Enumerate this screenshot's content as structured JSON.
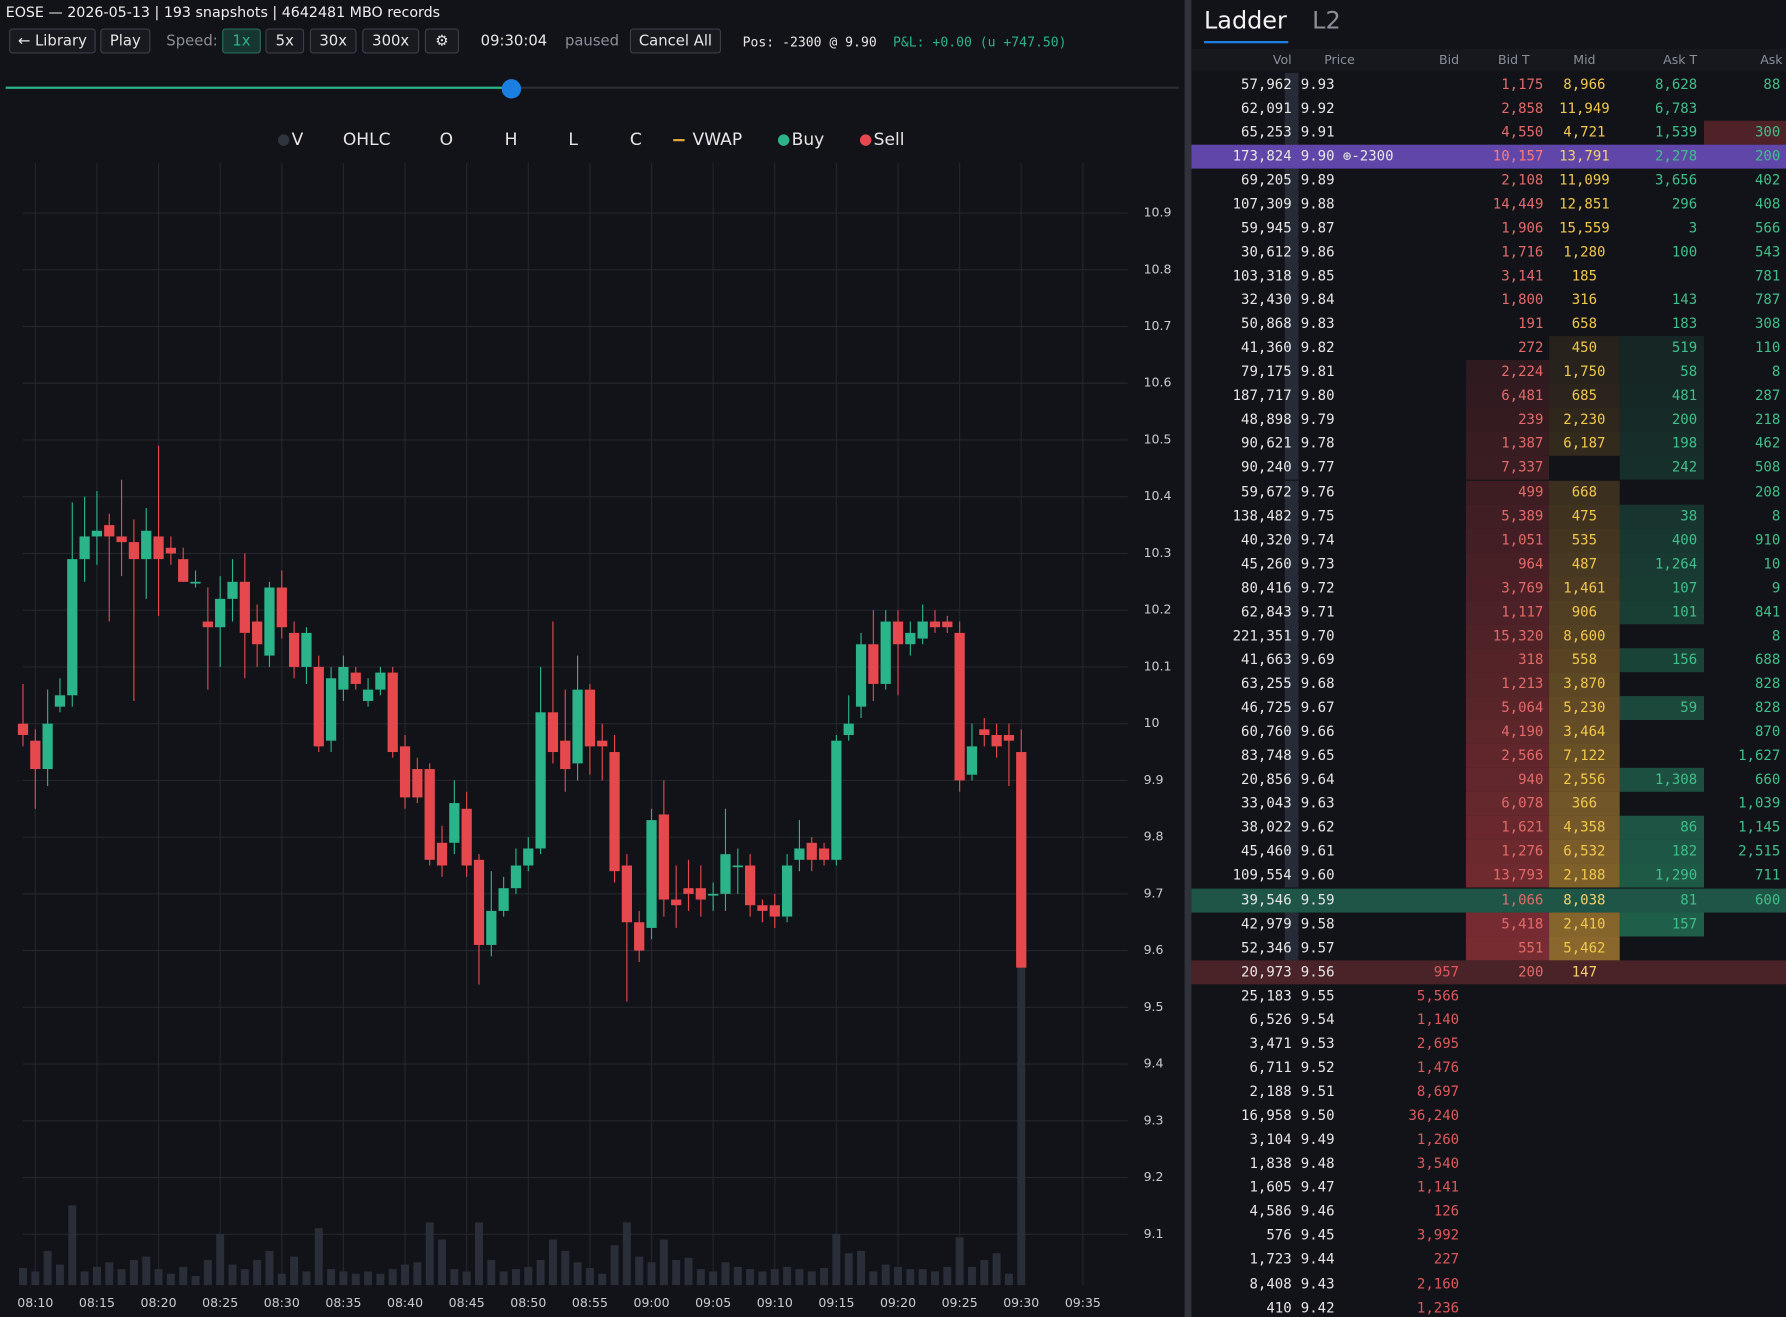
{
  "header": {
    "title": "EOSE — 2026-05-13 | 193 snapshots | 4642481 MBO records"
  },
  "toolbar": {
    "library": "← Library",
    "play": "Play",
    "speed_label": "Speed:",
    "speeds": [
      "1x",
      "5x",
      "30x",
      "300x"
    ],
    "settings": "⚙",
    "clock": "09:30:04",
    "status": "paused",
    "cancel": "Cancel All",
    "position": "Pos: -2300 @ 9.90",
    "pnl": "P&L: +0.00 (u +747.50)"
  },
  "chart_data": {
    "type": "candlestick",
    "legend": [
      {
        "name": "V",
        "marker": "dot",
        "color": "#30343e"
      },
      {
        "name": "OHLC"
      },
      {
        "name": "O"
      },
      {
        "name": "H"
      },
      {
        "name": "L"
      },
      {
        "name": "C"
      },
      {
        "name": "VWAP",
        "marker": "line",
        "color": "#e0a53a"
      },
      {
        "name": "Buy",
        "marker": "dot",
        "color": "#2bb38a"
      },
      {
        "name": "Sell",
        "marker": "dot",
        "color": "#e5484d"
      }
    ],
    "up_color": "#2bb38a",
    "down_color": "#e5484d",
    "volume_color": "#2a2e38",
    "x": [
      "08:09",
      "08:10",
      "08:11",
      "08:12",
      "08:13",
      "08:14",
      "08:15",
      "08:16",
      "08:17",
      "08:18",
      "08:19",
      "08:20",
      "08:21",
      "08:22",
      "08:23",
      "08:24",
      "08:25",
      "08:26",
      "08:27",
      "08:28",
      "08:29",
      "08:30",
      "08:31",
      "08:32",
      "08:33",
      "08:34",
      "08:35",
      "08:36",
      "08:37",
      "08:38",
      "08:39",
      "08:40",
      "08:41",
      "08:42",
      "08:43",
      "08:44",
      "08:45",
      "08:46",
      "08:47",
      "08:48",
      "08:49",
      "08:50",
      "08:51",
      "08:52",
      "08:53",
      "08:54",
      "08:55",
      "08:56",
      "08:57",
      "08:58",
      "08:59",
      "09:00",
      "09:01",
      "09:02",
      "09:03",
      "09:04",
      "09:05",
      "09:06",
      "09:07",
      "09:08",
      "09:09",
      "09:10",
      "09:11",
      "09:12",
      "09:13",
      "09:14",
      "09:15",
      "09:16",
      "09:17",
      "09:18",
      "09:19",
      "09:20",
      "09:21",
      "09:22",
      "09:23",
      "09:24",
      "09:25",
      "09:26",
      "09:27",
      "09:28",
      "09:29",
      "09:30"
    ],
    "open": [
      10.0,
      9.97,
      9.92,
      10.03,
      10.05,
      10.29,
      10.33,
      10.35,
      10.33,
      10.32,
      10.29,
      10.33,
      10.31,
      10.29,
      10.25,
      10.18,
      10.17,
      10.22,
      10.25,
      10.18,
      10.12,
      10.24,
      10.16,
      10.1,
      10.1,
      9.97,
      10.06,
      10.09,
      10.04,
      10.06,
      10.09,
      9.96,
      9.92,
      9.92,
      9.79,
      9.79,
      9.85,
      9.76,
      9.61,
      9.67,
      9.71,
      9.75,
      9.78,
      10.02,
      9.97,
      9.93,
      10.06,
      9.97,
      9.95,
      9.75,
      9.65,
      9.64,
      9.84,
      9.69,
      9.71,
      9.71,
      9.7,
      9.7,
      9.75,
      9.75,
      9.68,
      9.68,
      9.66,
      9.76,
      9.79,
      9.78,
      9.76,
      9.98,
      10.03,
      10.14,
      10.07,
      10.18,
      10.14,
      10.15,
      10.18,
      10.18,
      10.16,
      9.91,
      9.99,
      9.98,
      9.98,
      9.95
    ],
    "high": [
      10.07,
      9.99,
      10.06,
      10.08,
      10.39,
      10.4,
      10.41,
      10.37,
      10.43,
      10.36,
      10.38,
      10.49,
      10.33,
      10.31,
      10.27,
      10.24,
      10.26,
      10.29,
      10.3,
      10.21,
      10.25,
      10.27,
      10.18,
      10.17,
      10.12,
      10.1,
      10.12,
      10.1,
      10.08,
      10.1,
      10.1,
      9.98,
      9.94,
      9.93,
      9.82,
      9.9,
      9.88,
      9.77,
      9.74,
      9.73,
      9.78,
      9.8,
      10.1,
      10.18,
      10.06,
      10.12,
      10.07,
      10.0,
      9.98,
      9.77,
      9.67,
      9.85,
      9.9,
      9.75,
      9.76,
      9.75,
      9.72,
      9.85,
      9.78,
      9.77,
      9.69,
      9.7,
      9.77,
      9.83,
      9.8,
      9.79,
      9.98,
      10.05,
      10.16,
      10.2,
      10.2,
      10.2,
      10.18,
      10.21,
      10.2,
      10.19,
      10.18,
      10.0,
      10.01,
      10.0,
      10.0,
      9.99
    ],
    "low": [
      9.96,
      9.85,
      9.89,
      10.02,
      10.03,
      10.25,
      10.28,
      10.18,
      10.26,
      10.04,
      10.22,
      10.19,
      10.28,
      10.25,
      10.24,
      10.06,
      10.1,
      10.18,
      10.08,
      10.1,
      10.1,
      10.15,
      10.08,
      10.07,
      9.95,
      9.95,
      10.04,
      10.06,
      10.03,
      10.05,
      9.94,
      9.85,
      9.86,
      9.75,
      9.73,
      9.77,
      9.73,
      9.54,
      9.59,
      9.66,
      9.7,
      9.74,
      9.77,
      9.93,
      9.88,
      9.9,
      9.91,
      9.9,
      9.72,
      9.51,
      9.58,
      9.62,
      9.66,
      9.64,
      9.67,
      9.66,
      9.67,
      9.67,
      9.7,
      9.66,
      9.65,
      9.64,
      9.65,
      9.74,
      9.74,
      9.75,
      9.75,
      9.97,
      10.01,
      10.04,
      10.06,
      10.05,
      10.12,
      10.14,
      10.16,
      10.16,
      9.88,
      9.9,
      9.96,
      9.94,
      9.89,
      9.57
    ],
    "close": [
      9.98,
      9.92,
      10.0,
      10.05,
      10.29,
      10.33,
      10.34,
      10.33,
      10.32,
      10.29,
      10.34,
      10.29,
      10.3,
      10.25,
      10.25,
      10.17,
      10.22,
      10.25,
      10.16,
      10.14,
      10.24,
      10.17,
      10.1,
      10.16,
      9.96,
      10.08,
      10.1,
      10.07,
      10.06,
      10.09,
      9.95,
      9.87,
      9.87,
      9.76,
      9.75,
      9.86,
      9.75,
      9.61,
      9.67,
      9.71,
      9.75,
      9.78,
      10.02,
      9.95,
      9.92,
      10.06,
      9.96,
      9.96,
      9.74,
      9.65,
      9.6,
      9.83,
      9.69,
      9.68,
      9.7,
      9.69,
      9.7,
      9.77,
      9.75,
      9.68,
      9.67,
      9.66,
      9.75,
      9.78,
      9.76,
      9.76,
      9.97,
      10.0,
      10.14,
      10.07,
      10.18,
      10.14,
      10.16,
      10.18,
      10.17,
      10.17,
      9.9,
      9.96,
      9.98,
      9.96,
      9.97,
      9.57
    ],
    "volume": [
      15,
      12,
      30,
      18,
      70,
      12,
      16,
      20,
      14,
      22,
      25,
      14,
      10,
      16,
      8,
      22,
      45,
      18,
      14,
      22,
      30,
      10,
      25,
      12,
      50,
      14,
      12,
      10,
      12,
      10,
      14,
      18,
      20,
      55,
      40,
      14,
      12,
      55,
      22,
      12,
      14,
      16,
      22,
      40,
      30,
      20,
      15,
      10,
      35,
      55,
      25,
      20,
      40,
      22,
      24,
      14,
      12,
      20,
      16,
      14,
      12,
      14,
      16,
      14,
      12,
      15,
      45,
      28,
      30,
      12,
      18,
      16,
      14,
      14,
      12,
      16,
      42,
      16,
      22,
      28,
      10,
      280
    ],
    "ylim": [
      9,
      11
    ],
    "yticks": [
      9.1,
      9.2,
      9.3,
      9.4,
      9.5,
      9.6,
      9.7,
      9.8,
      9.9,
      10,
      10.1,
      10.2,
      10.3,
      10.4,
      10.5,
      10.6,
      10.7,
      10.8,
      10.9
    ],
    "xticks": [
      "08:10",
      "08:15",
      "08:20",
      "08:25",
      "08:30",
      "08:35",
      "08:40",
      "08:45",
      "08:50",
      "08:55",
      "09:00",
      "09:05",
      "09:10",
      "09:15",
      "09:20",
      "09:25",
      "09:30",
      "09:35"
    ],
    "grid": true
  },
  "ladder": {
    "tabs": [
      "Ladder",
      "L2"
    ],
    "columns": [
      "Vol",
      "Price",
      "Bid",
      "Bid T",
      "Mid",
      "Ask T",
      "Ask"
    ],
    "rows": [
      [
        "57,962",
        "9.93",
        null,
        "1,175",
        "8,966",
        "8,628",
        "88"
      ],
      [
        "62,091",
        "9.92",
        null,
        "2,858",
        "11,949",
        "6,783",
        null
      ],
      [
        "65,253",
        "9.91",
        null,
        "4,550",
        "4,721",
        "1,539",
        "300"
      ],
      [
        "173,824",
        "9.90 ⊕-2300",
        null,
        "10,157",
        "13,791",
        "2,278",
        "200"
      ],
      [
        "69,205",
        "9.89",
        null,
        "2,108",
        "11,099",
        "3,656",
        "402"
      ],
      [
        "107,309",
        "9.88",
        null,
        "14,449",
        "12,851",
        "296",
        "408"
      ],
      [
        "59,945",
        "9.87",
        null,
        "1,906",
        "15,559",
        "3",
        "566"
      ],
      [
        "30,612",
        "9.86",
        null,
        "1,716",
        "1,280",
        "100",
        "543"
      ],
      [
        "103,318",
        "9.85",
        null,
        "3,141",
        "185",
        null,
        "781"
      ],
      [
        "32,430",
        "9.84",
        null,
        "1,800",
        "316",
        "143",
        "787"
      ],
      [
        "50,868",
        "9.83",
        null,
        "191",
        "658",
        "183",
        "308"
      ],
      [
        "41,360",
        "9.82",
        null,
        "272",
        "450",
        "519",
        "110"
      ],
      [
        "79,175",
        "9.81",
        null,
        "2,224",
        "1,750",
        "58",
        "8"
      ],
      [
        "187,717",
        "9.80",
        null,
        "6,481",
        "685",
        "481",
        "287"
      ],
      [
        "48,898",
        "9.79",
        null,
        "239",
        "2,230",
        "200",
        "218"
      ],
      [
        "90,621",
        "9.78",
        null,
        "1,387",
        "6,187",
        "198",
        "462"
      ],
      [
        "90,240",
        "9.77",
        null,
        "7,337",
        null,
        "242",
        "508"
      ],
      [
        "59,672",
        "9.76",
        null,
        "499",
        "668",
        null,
        "208"
      ],
      [
        "138,482",
        "9.75",
        null,
        "5,389",
        "475",
        "38",
        "8"
      ],
      [
        "40,320",
        "9.74",
        null,
        "1,051",
        "535",
        "400",
        "910"
      ],
      [
        "45,260",
        "9.73",
        null,
        "964",
        "487",
        "1,264",
        "10"
      ],
      [
        "80,416",
        "9.72",
        null,
        "3,769",
        "1,461",
        "107",
        "9"
      ],
      [
        "62,843",
        "9.71",
        null,
        "1,117",
        "906",
        "101",
        "841"
      ],
      [
        "221,351",
        "9.70",
        null,
        "15,320",
        "8,600",
        null,
        "8"
      ],
      [
        "41,663",
        "9.69",
        null,
        "318",
        "558",
        "156",
        "688"
      ],
      [
        "63,255",
        "9.68",
        null,
        "1,213",
        "3,870",
        null,
        "828"
      ],
      [
        "46,725",
        "9.67",
        null,
        "5,064",
        "5,230",
        "59",
        "828"
      ],
      [
        "60,760",
        "9.66",
        null,
        "4,190",
        "3,464",
        null,
        "870"
      ],
      [
        "83,748",
        "9.65",
        null,
        "2,566",
        "7,122",
        null,
        "1,627"
      ],
      [
        "20,856",
        "9.64",
        null,
        "940",
        "2,556",
        "1,308",
        "660"
      ],
      [
        "33,043",
        "9.63",
        null,
        "6,078",
        "366",
        null,
        "1,039"
      ],
      [
        "38,022",
        "9.62",
        null,
        "1,621",
        "4,358",
        "86",
        "1,145"
      ],
      [
        "45,460",
        "9.61",
        null,
        "1,276",
        "6,532",
        "182",
        "2,515"
      ],
      [
        "109,554",
        "9.60",
        null,
        "13,793",
        "2,188",
        "1,290",
        "711"
      ],
      [
        "39,546",
        "9.59",
        null,
        "1,066",
        "8,038",
        "81",
        "600"
      ],
      [
        "42,979",
        "9.58",
        null,
        "5,418",
        "2,410",
        "157",
        null
      ],
      [
        "52,346",
        "9.57",
        null,
        "551",
        "5,462",
        null,
        null
      ],
      [
        "20,973",
        "9.56",
        "957",
        "200",
        "147",
        null,
        null
      ],
      [
        "25,183",
        "9.55",
        "5,566",
        null,
        null,
        null,
        null
      ],
      [
        "6,526",
        "9.54",
        "1,140",
        null,
        null,
        null,
        null
      ],
      [
        "3,471",
        "9.53",
        "2,695",
        null,
        null,
        null,
        null
      ],
      [
        "6,711",
        "9.52",
        "1,476",
        null,
        null,
        null,
        null
      ],
      [
        "2,188",
        "9.51",
        "8,697",
        null,
        null,
        null,
        null
      ],
      [
        "16,958",
        "9.50",
        "36,240",
        null,
        null,
        null,
        null
      ],
      [
        "3,104",
        "9.49",
        "1,260",
        null,
        null,
        null,
        null
      ],
      [
        "1,838",
        "9.48",
        "3,540",
        null,
        null,
        null,
        null
      ],
      [
        "1,605",
        "9.47",
        "1,141",
        null,
        null,
        null,
        null
      ],
      [
        "4,586",
        "9.46",
        "126",
        null,
        null,
        null,
        null
      ],
      [
        "576",
        "9.45",
        "3,992",
        null,
        null,
        null,
        null
      ],
      [
        "1,723",
        "9.44",
        "227",
        null,
        null,
        null,
        null
      ],
      [
        "8,408",
        "9.43",
        "2,160",
        null,
        null,
        null,
        null
      ],
      [
        "410",
        "9.42",
        "1,236",
        null,
        null,
        null,
        null
      ]
    ]
  }
}
